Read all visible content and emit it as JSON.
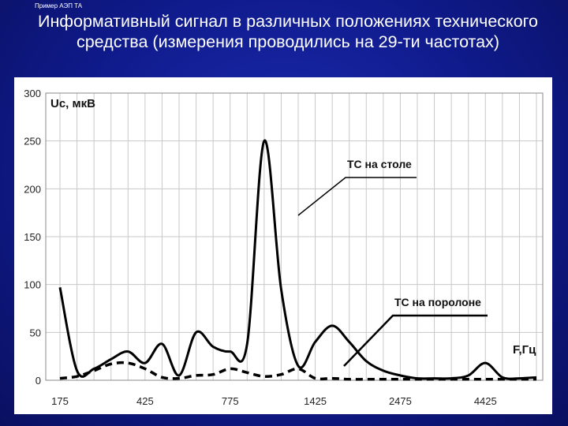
{
  "slide": {
    "label": "Пример АЭП ТА",
    "title": "Информативный сигнал в различных положениях технического средства (измерения проводились на 29-ти частотах)"
  },
  "chart_data": {
    "type": "line",
    "ylabel": "Uc, мкВ",
    "xlabel": "F,Гц",
    "ylim": [
      0,
      300
    ],
    "y_ticks": [
      0,
      50,
      100,
      150,
      200,
      250,
      300
    ],
    "x_tick_labels": [
      "175",
      "425",
      "775",
      "1425",
      "2475",
      "4425"
    ],
    "points_count": 29,
    "grid": true,
    "series": [
      {
        "name": "ТС на столе",
        "style": "solid",
        "color": "#000000",
        "values": [
          97,
          10,
          12,
          22,
          30,
          18,
          38,
          5,
          50,
          35,
          30,
          38,
          250,
          95,
          15,
          40,
          57,
          40,
          20,
          10,
          5,
          2,
          2,
          2,
          5,
          18,
          3,
          2,
          3
        ]
      },
      {
        "name": "ТС на поролоне",
        "style": "dashed",
        "color": "#000000",
        "values": [
          2,
          4,
          10,
          17,
          18,
          12,
          3,
          2,
          5,
          6,
          12,
          8,
          4,
          6,
          12,
          2,
          2,
          1,
          1,
          1,
          1,
          1,
          1,
          1,
          1,
          1,
          1,
          1,
          1
        ]
      }
    ]
  }
}
